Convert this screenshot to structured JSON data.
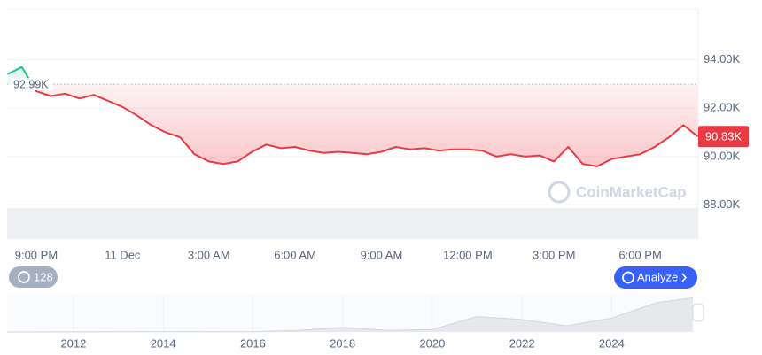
{
  "chart_data": [
    {
      "type": "line",
      "categories": [
        null,
        null,
        "9:00 PM",
        null,
        null,
        null,
        null,
        null,
        "11 Dec",
        null,
        null,
        null,
        null,
        null,
        "3:00 AM",
        null,
        null,
        null,
        null,
        null,
        "6:00 AM",
        null,
        null,
        null,
        null,
        null,
        "9:00 AM",
        null,
        null,
        null,
        null,
        null,
        "12:00 PM",
        null,
        null,
        null,
        null,
        null,
        "3:00 PM",
        null,
        null,
        null,
        null,
        null,
        "6:00 PM",
        null,
        null,
        null,
        null
      ],
      "series": [
        {
          "color": "#ea3943",
          "above_color": "#16c784",
          "values": [
            93400,
            93700,
            92700,
            92500,
            92600,
            92400,
            92550,
            92300,
            92050,
            91700,
            91300,
            91000,
            90800,
            90100,
            89800,
            89700,
            89800,
            90200,
            90500,
            90350,
            90400,
            90250,
            90150,
            90200,
            90150,
            90100,
            90200,
            90400,
            90300,
            90350,
            90250,
            90300,
            90300,
            90250,
            90000,
            90100,
            90000,
            90050,
            89800,
            90400,
            89700,
            89600,
            89900,
            90000,
            90100,
            90400,
            90800,
            91300,
            90830
          ],
          "value_labels": [
            null,
            null,
            null,
            null,
            null,
            null,
            null,
            null,
            null,
            null,
            null,
            null,
            null,
            null,
            null,
            null,
            null,
            null,
            null,
            null,
            null,
            null,
            null,
            null,
            null,
            null,
            null,
            null,
            null,
            null,
            null,
            null,
            null,
            null,
            null,
            null,
            null,
            null,
            null,
            null,
            null,
            null,
            null,
            null,
            null,
            null,
            null,
            null,
            "90.83K"
          ]
        }
      ],
      "baseline": {
        "value": 92990,
        "label": "92.99K"
      },
      "ylim": [
        86600,
        96100
      ],
      "yticks": [
        {
          "value": 88000,
          "label": "88.00K"
        },
        {
          "value": 90000,
          "label": "90.00K"
        },
        {
          "value": 92000,
          "label": "92.00K"
        },
        {
          "value": 94000,
          "label": "94.00K"
        }
      ],
      "grid": true
    },
    {
      "type": "area",
      "x": [
        2010.52,
        2013,
        2014,
        2016,
        2017,
        2018,
        2019,
        2020,
        2021,
        2022,
        2023,
        2024,
        2025,
        2025.81
      ],
      "values": [
        0,
        500,
        1000,
        500,
        5000,
        15000,
        5000,
        8000,
        50000,
        40000,
        20000,
        45000,
        95000,
        110000
      ],
      "color": "#e6e8ec",
      "xlim": [
        2010.52,
        2025.81
      ],
      "ylim": [
        0,
        120000
      ],
      "xticks": [
        2012,
        2014,
        2016,
        2018,
        2020,
        2022,
        2024
      ]
    }
  ],
  "ui": {
    "watermark": "CoinMarketCap",
    "history_badge": "128",
    "analyze_button": "Analyze"
  }
}
